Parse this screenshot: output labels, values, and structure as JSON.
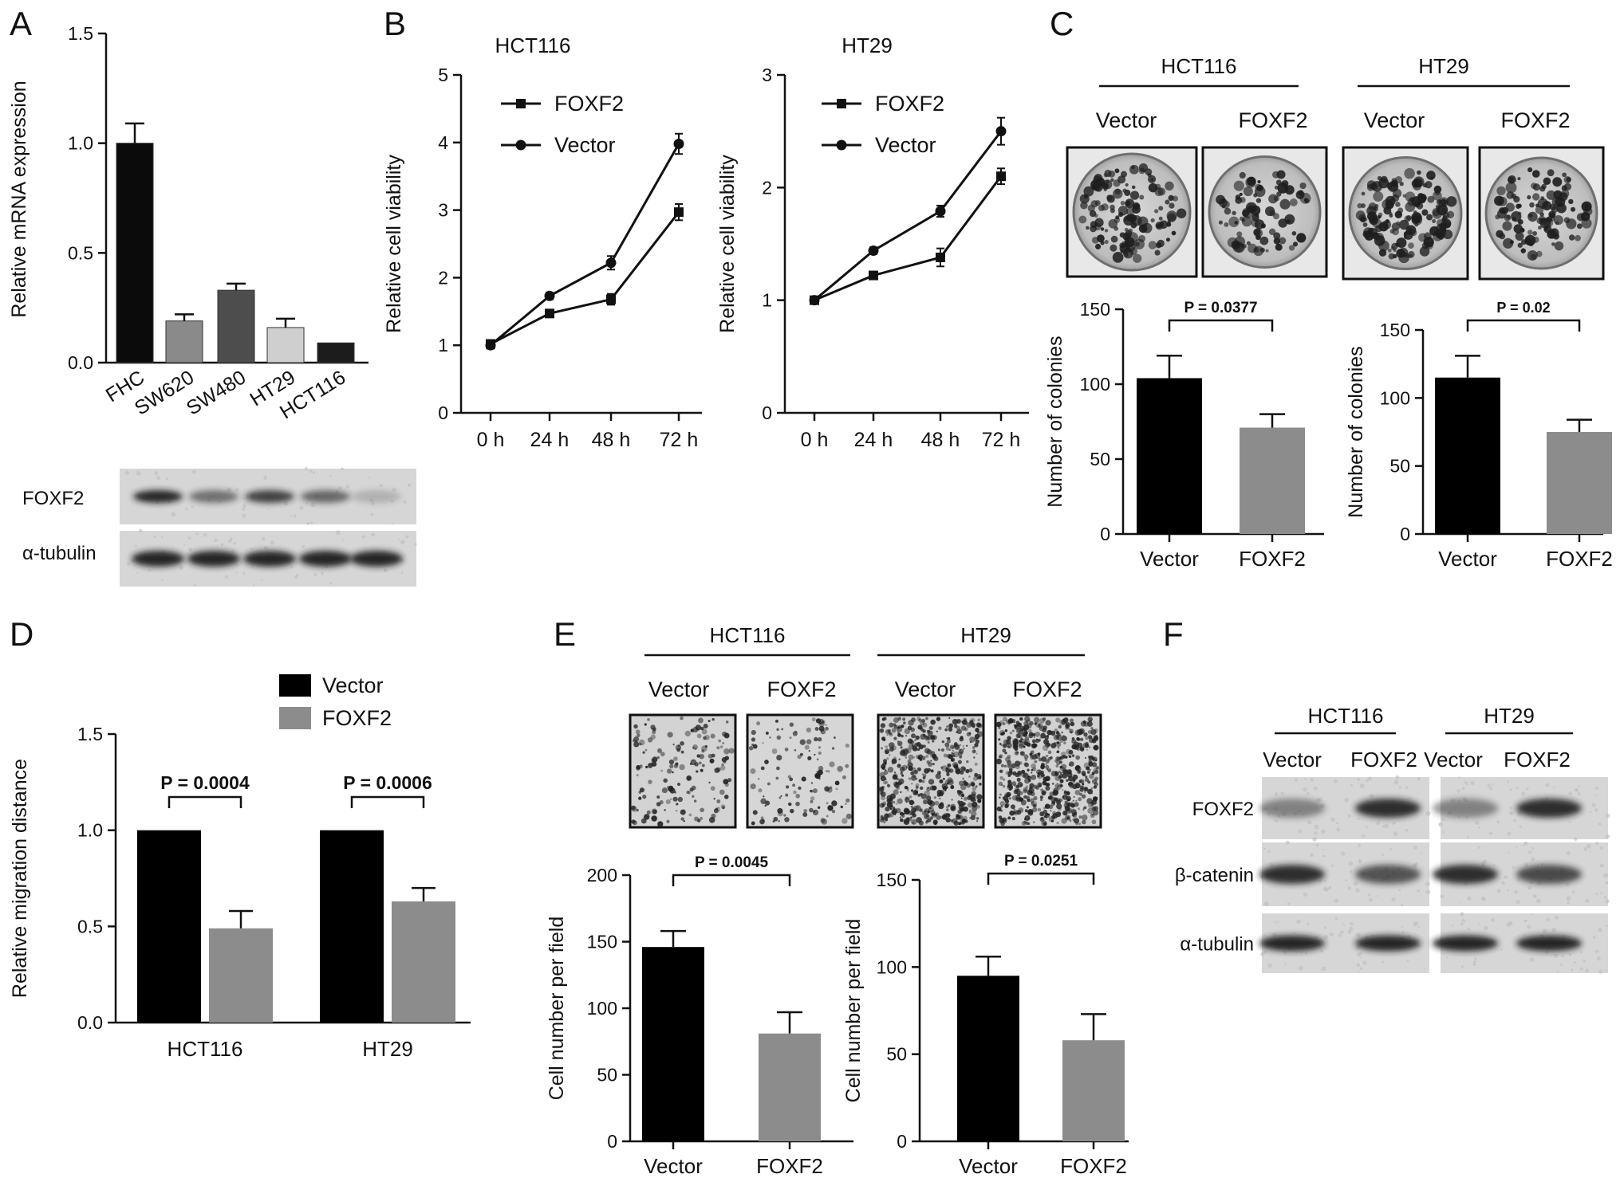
{
  "chart_data": [
    {
      "panel": "A",
      "type": "bar",
      "ylabel": "Relative mRNA expression",
      "ylim": [
        0,
        1.5
      ],
      "yticks": [
        "0.0",
        "0.5",
        "1.0",
        "1.5"
      ],
      "categories": [
        "FHC",
        "SW620",
        "SW480",
        "HT29",
        "HCT116"
      ],
      "values": [
        1.0,
        0.19,
        0.33,
        0.16,
        0.09
      ],
      "errors": [
        0.09,
        0.03,
        0.03,
        0.04,
        0.0
      ],
      "colors": [
        "#0b0b0b",
        "#8a8a8a",
        "#4d4d4d",
        "#cfcfcf",
        "#1c1c1c"
      ]
    },
    {
      "panel": "A",
      "type": "blot",
      "rows": [
        "FOXF2",
        "α-tubulin"
      ],
      "band_intensity": [
        [
          0.95,
          0.55,
          0.8,
          0.6,
          0.2
        ],
        [
          0.95,
          0.95,
          0.95,
          0.95,
          0.95
        ]
      ]
    },
    {
      "panel": "B",
      "type": "line",
      "title": "HCT116",
      "ylabel": "Relative cell viability",
      "ylim": [
        0,
        5
      ],
      "yticks": [
        "0",
        "1",
        "2",
        "3",
        "4",
        "5"
      ],
      "x": [
        "0 h",
        "24 h",
        "48 h",
        "72 h"
      ],
      "series": [
        {
          "name": "FOXF2",
          "marker": "square",
          "values": [
            1.02,
            1.47,
            1.68,
            2.97
          ],
          "errors": [
            0.05,
            0.05,
            0.08,
            0.12
          ]
        },
        {
          "name": "Vector",
          "marker": "circle",
          "values": [
            1.0,
            1.73,
            2.22,
            3.98
          ],
          "errors": [
            0.05,
            0.05,
            0.1,
            0.15
          ]
        }
      ]
    },
    {
      "panel": "B",
      "type": "line",
      "title": "HT29",
      "ylabel": "Relative cell viability",
      "ylim": [
        0,
        3
      ],
      "yticks": [
        "0",
        "1",
        "2",
        "3"
      ],
      "x": [
        "0 h",
        "24 h",
        "48 h",
        "72 h"
      ],
      "series": [
        {
          "name": "FOXF2",
          "marker": "square",
          "values": [
            1.0,
            1.22,
            1.38,
            2.1
          ],
          "errors": [
            0.03,
            0.03,
            0.08,
            0.07
          ]
        },
        {
          "name": "Vector",
          "marker": "circle",
          "values": [
            1.0,
            1.44,
            1.79,
            2.5
          ],
          "errors": [
            0.03,
            0.03,
            0.05,
            0.12
          ]
        }
      ]
    },
    {
      "panel": "C",
      "type": "bar",
      "title": "HCT116",
      "ylabel": "Number of colonies",
      "ylim": [
        0,
        150
      ],
      "yticks": [
        "0",
        "50",
        "100",
        "150"
      ],
      "categories": [
        "Vector",
        "FOXF2"
      ],
      "values": [
        104,
        71
      ],
      "errors": [
        15,
        9
      ],
      "colors": [
        "#000000",
        "#8c8c8c"
      ],
      "pvalue": "P = 0.0377"
    },
    {
      "panel": "C",
      "type": "bar",
      "title": "HT29",
      "ylabel": "Number of colonies",
      "ylim": [
        0,
        150
      ],
      "yticks": [
        "0",
        "50",
        "100",
        "150"
      ],
      "categories": [
        "Vector",
        "FOXF2"
      ],
      "values": [
        115,
        75
      ],
      "errors": [
        16,
        9
      ],
      "colors": [
        "#000000",
        "#8c8c8c"
      ],
      "pvalue": "P = 0.02"
    },
    {
      "panel": "D",
      "type": "bar",
      "ylabel": "Relative migration distance",
      "ylim": [
        0,
        1.5
      ],
      "yticks": [
        "0.0",
        "0.5",
        "1.0",
        "1.5"
      ],
      "categories": [
        "HCT116",
        "HT29"
      ],
      "series": [
        {
          "name": "Vector",
          "values": [
            1.0,
            1.0
          ],
          "errors": [
            0,
            0
          ],
          "color": "#000000"
        },
        {
          "name": "FOXF2",
          "values": [
            0.49,
            0.63
          ],
          "errors": [
            0.09,
            0.07
          ],
          "color": "#8c8c8c"
        }
      ],
      "pvalues": [
        "P = 0.0004",
        "P = 0.0006"
      ]
    },
    {
      "panel": "E",
      "type": "bar",
      "title": "HCT116",
      "ylabel": "Cell number per field",
      "ylim": [
        0,
        200
      ],
      "yticks": [
        "0",
        "50",
        "100",
        "150",
        "200"
      ],
      "categories": [
        "Vector",
        "FOXF2"
      ],
      "values": [
        146,
        81
      ],
      "errors": [
        12,
        16
      ],
      "colors": [
        "#000000",
        "#8c8c8c"
      ],
      "pvalue": "P = 0.0045"
    },
    {
      "panel": "E",
      "type": "bar",
      "title": "HT29",
      "ylabel": "Cell number per field",
      "ylim": [
        0,
        150
      ],
      "yticks": [
        "0",
        "50",
        "100",
        "150"
      ],
      "categories": [
        "Vector",
        "FOXF2"
      ],
      "values": [
        95,
        58
      ],
      "errors": [
        11,
        15
      ],
      "colors": [
        "#000000",
        "#8c8c8c"
      ],
      "pvalue": "P = 0.0251"
    },
    {
      "panel": "F",
      "type": "blot",
      "groups": [
        "HCT116",
        "HT29"
      ],
      "lanes": [
        "Vector",
        "FOXF2",
        "Vector",
        "FOXF2"
      ],
      "rows": [
        "FOXF2",
        "β-catenin",
        "α-tubulin"
      ],
      "band_intensity": [
        [
          0.45,
          0.9,
          0.45,
          0.9
        ],
        [
          0.9,
          0.7,
          0.9,
          0.75
        ],
        [
          0.95,
          0.95,
          0.95,
          0.95
        ]
      ]
    }
  ],
  "panel_labels": [
    "A",
    "B",
    "C",
    "D",
    "E",
    "F"
  ],
  "photo_labels": {
    "C": {
      "groups": [
        "HCT116",
        "HT29"
      ],
      "lanes": [
        "Vector",
        "FOXF2",
        "Vector",
        "FOXF2"
      ]
    },
    "E": {
      "groups": [
        "HCT116",
        "HT29"
      ],
      "lanes": [
        "Vector",
        "FOXF2",
        "Vector",
        "FOXF2"
      ]
    }
  }
}
